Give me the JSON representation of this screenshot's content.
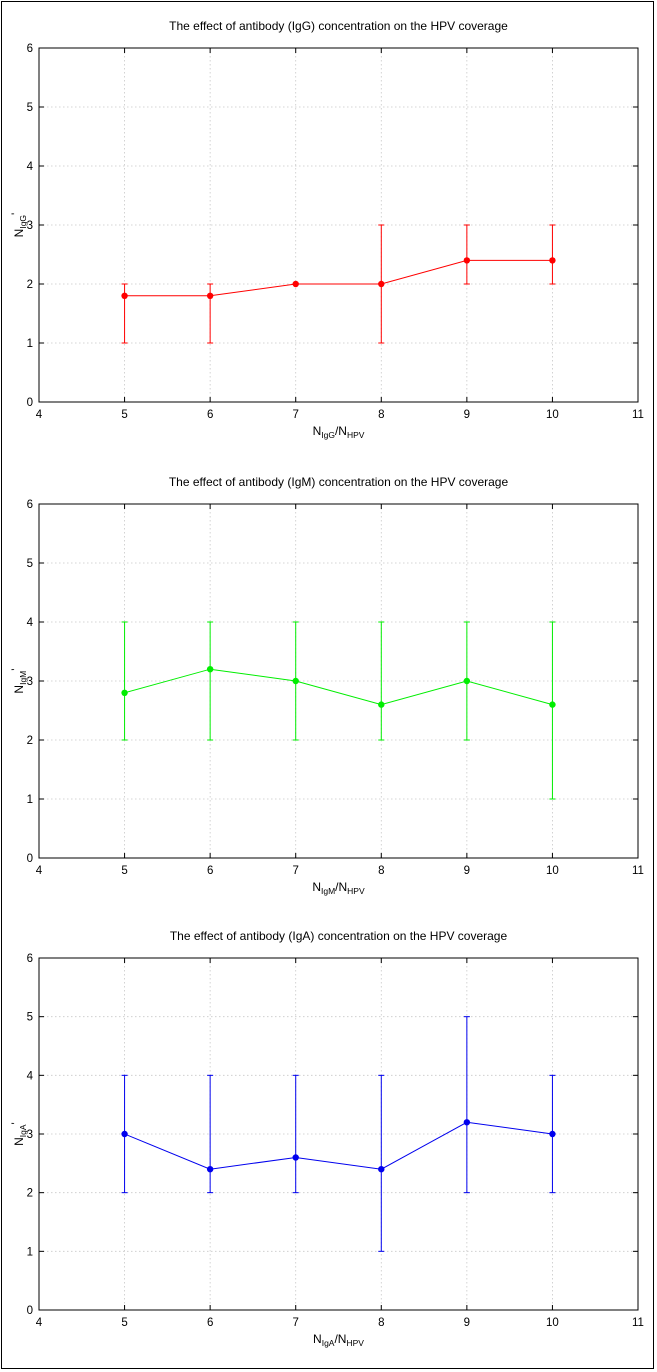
{
  "chart_data": [
    {
      "type": "line",
      "title": "The effect of antibody (IgG) concentration on the HPV coverage",
      "xlabel": {
        "main": "N",
        "main_sub": "IgG",
        "sep": "/N",
        "sep_sub": "HPV"
      },
      "ylabel": {
        "main": "N",
        "sub": "IgG",
        "sup": "'"
      },
      "xlim": [
        4,
        11
      ],
      "ylim": [
        0,
        6
      ],
      "xticks": [
        "4",
        "5",
        "6",
        "7",
        "8",
        "9",
        "10",
        "11"
      ],
      "yticks": [
        "0",
        "1",
        "2",
        "3",
        "4",
        "5",
        "6"
      ],
      "grid": true,
      "color": "#ff0000",
      "series": [
        {
          "x": [
            5,
            6,
            7,
            8,
            9,
            10
          ],
          "y": [
            1.8,
            1.8,
            2.0,
            2.0,
            2.4,
            2.4
          ],
          "err_low": [
            1,
            1,
            2,
            1,
            2,
            2
          ],
          "err_high": [
            2,
            2,
            2,
            3,
            3,
            3
          ]
        }
      ]
    },
    {
      "type": "line",
      "title": "The effect of antibody (IgM) concentration on the HPV coverage",
      "xlabel": {
        "main": "N",
        "main_sub": "IgM",
        "sep": "/N",
        "sep_sub": "HPV"
      },
      "ylabel": {
        "main": "N",
        "sub": "IgM",
        "sup": "'"
      },
      "xlim": [
        4,
        11
      ],
      "ylim": [
        0,
        6
      ],
      "xticks": [
        "4",
        "5",
        "6",
        "7",
        "8",
        "9",
        "10",
        "11"
      ],
      "yticks": [
        "0",
        "1",
        "2",
        "3",
        "4",
        "5",
        "6"
      ],
      "grid": true,
      "color": "#00ee00",
      "series": [
        {
          "x": [
            5,
            6,
            7,
            8,
            9,
            10
          ],
          "y": [
            2.8,
            3.2,
            3.0,
            2.6,
            3.0,
            2.6
          ],
          "err_low": [
            2,
            2,
            2,
            2,
            2,
            1
          ],
          "err_high": [
            4,
            4,
            4,
            4,
            4,
            4
          ]
        }
      ]
    },
    {
      "type": "line",
      "title": "The effect of antibody (IgA) concentration on the HPV coverage",
      "xlabel": {
        "main": "N",
        "main_sub": "IgA",
        "sep": "/N",
        "sep_sub": "HPV"
      },
      "ylabel": {
        "main": "N",
        "sub": "IgA",
        "sup": "'"
      },
      "xlim": [
        4,
        11
      ],
      "ylim": [
        0,
        6
      ],
      "xticks": [
        "4",
        "5",
        "6",
        "7",
        "8",
        "9",
        "10",
        "11"
      ],
      "yticks": [
        "0",
        "1",
        "2",
        "3",
        "4",
        "5",
        "6"
      ],
      "grid": true,
      "color": "#0000ee",
      "series": [
        {
          "x": [
            5,
            6,
            7,
            8,
            9,
            10
          ],
          "y": [
            3.0,
            2.4,
            2.6,
            2.4,
            3.2,
            3.0
          ],
          "err_low": [
            2,
            2,
            2,
            1,
            2,
            2
          ],
          "err_high": [
            4,
            4,
            4,
            4,
            5,
            4
          ]
        }
      ]
    }
  ]
}
